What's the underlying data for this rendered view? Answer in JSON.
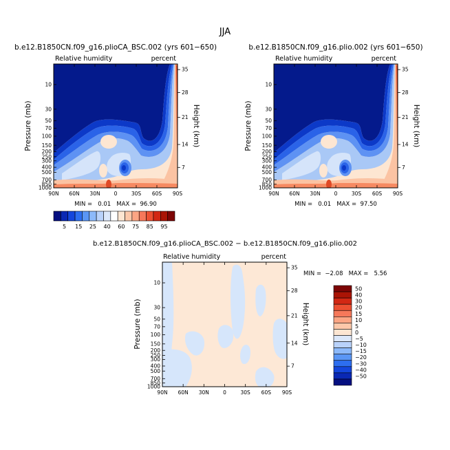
{
  "figure_title": "JJA",
  "chart_data": [
    {
      "type": "heatmap",
      "title": "b.e12.B1850CN.f09_g16.plioCA_BSC.002 (yrs 601−650)",
      "variable": "Relative humidity",
      "units": "percent",
      "ylabel": "Pressure (mb)",
      "right_label": "Height (km)",
      "x_ticks": [
        "90N",
        "60N",
        "30N",
        "0",
        "30S",
        "60S",
        "90S"
      ],
      "y_ticks": [
        "10",
        "30",
        "50",
        "70",
        "100",
        "150",
        "200",
        "250",
        "300",
        "400",
        "500",
        "700",
        "850",
        "1000"
      ],
      "height_ticks": [
        "35",
        "28",
        "21",
        "14",
        "7"
      ],
      "stats": "MIN =   0.01   MAX =  96.90",
      "min": 0.01,
      "max": 96.9
    },
    {
      "type": "heatmap",
      "title": "b.e12.B1850CN.f09_g16.plio.002 (yrs 601−650)",
      "variable": "Relative humidity",
      "units": "percent",
      "ylabel": "Pressure (mb)",
      "right_label": "Height (km)",
      "x_ticks": [
        "90N",
        "60N",
        "30N",
        "0",
        "30S",
        "60S",
        "90S"
      ],
      "y_ticks": [
        "10",
        "30",
        "50",
        "70",
        "100",
        "150",
        "200",
        "250",
        "300",
        "400",
        "500",
        "700",
        "850",
        "1000"
      ],
      "height_ticks": [
        "35",
        "28",
        "21",
        "14",
        "7"
      ],
      "stats": "MIN =   0.01   MAX =  97.50",
      "min": 0.01,
      "max": 97.5
    },
    {
      "type": "heatmap",
      "title": "b.e12.B1850CN.f09_g16.plioCA_BSC.002 − b.e12.B1850CN.f09_g16.plio.002",
      "variable": "Relative humidity",
      "units": "percent",
      "ylabel": "Pressure (mb)",
      "right_label": "Height (km)",
      "x_ticks": [
        "90N",
        "60N",
        "30N",
        "0",
        "30S",
        "60S",
        "90S"
      ],
      "y_ticks": [
        "10",
        "30",
        "50",
        "70",
        "100",
        "150",
        "200",
        "250",
        "300",
        "400",
        "500",
        "700",
        "850",
        "1000"
      ],
      "height_ticks": [
        "35",
        "28",
        "21",
        "14",
        "7"
      ],
      "stats": "MIN =  −2.08   MAX =   5.56",
      "min": -2.08,
      "max": 5.56
    }
  ],
  "colorbar_top": {
    "labels": [
      "5",
      "15",
      "25",
      "40",
      "60",
      "75",
      "85",
      "95"
    ],
    "colors": [
      "#050f80",
      "#0a28b4",
      "#1446dc",
      "#2d6ef0",
      "#5a96f5",
      "#8cb9fa",
      "#b9d2fa",
      "#dce8fa",
      "#ffffff",
      "#fde6d2",
      "#fcc8aa",
      "#fba584",
      "#f6785a",
      "#ec5032",
      "#d22814",
      "#aa1405",
      "#7d0505"
    ]
  },
  "colorbar_diff": {
    "labels": [
      "50",
      "40",
      "30",
      "20",
      "15",
      "10",
      "5",
      "0",
      "−5",
      "−10",
      "−15",
      "−20",
      "−30",
      "−40",
      "−50"
    ],
    "colors": [
      "#7d0505",
      "#aa1405",
      "#d22814",
      "#ec5032",
      "#f6785a",
      "#fba584",
      "#fcc8aa",
      "#fde6d2",
      "#dce8fa",
      "#b9d2fa",
      "#8cb9fa",
      "#5a96f5",
      "#2d6ef0",
      "#1446dc",
      "#0a28b4",
      "#050f80"
    ]
  },
  "colors": {
    "upper_dry": "#041a8c",
    "blue2": "#0c39c8",
    "blue3": "#2a63e8",
    "blue4": "#5e92f3",
    "light_blue": "#a9c8f6",
    "pale_blue": "#d5e4fa",
    "peach": "#fde6d2",
    "salmon": "#fbc3a3",
    "orange": "#f68a62",
    "red": "#e04a26",
    "dark_red": "#b81a08",
    "diff_pos": "#fde8d6",
    "diff_neg": "#d6e6fb"
  }
}
